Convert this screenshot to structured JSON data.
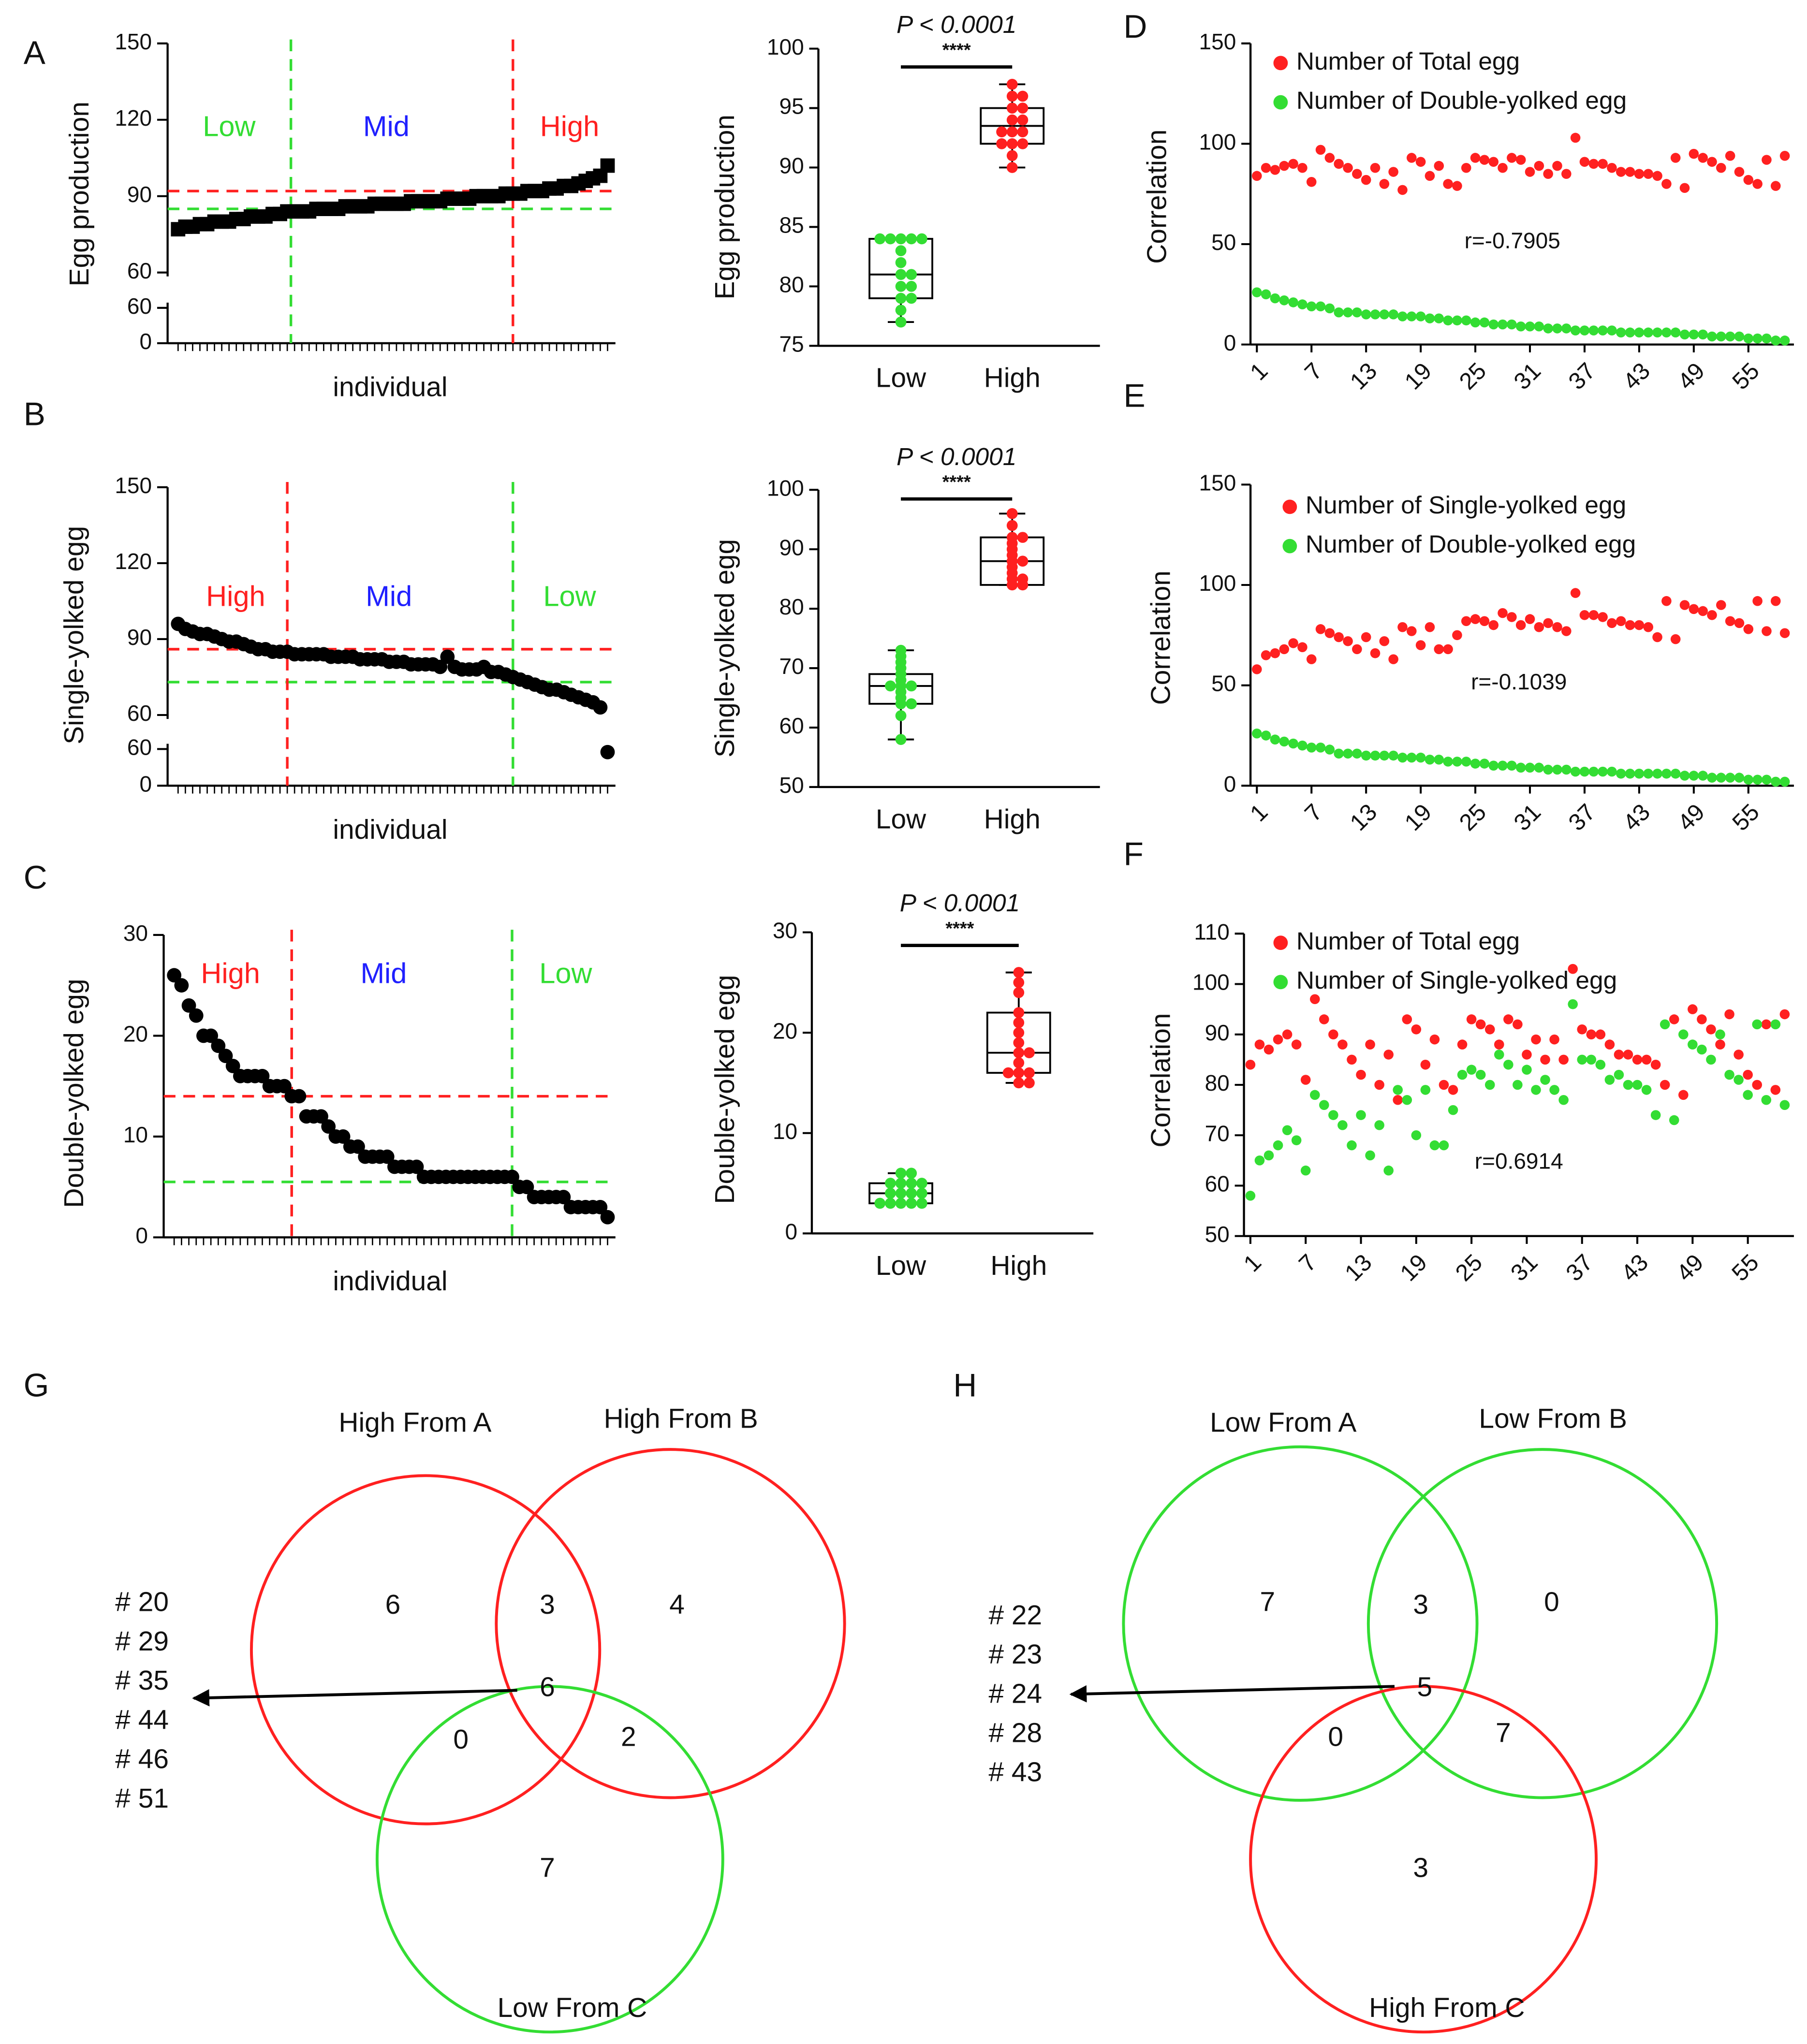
{
  "chart_data": [
    {
      "type": "scatter",
      "panel": "A",
      "ylabel": "Egg production",
      "xlabel": "individual",
      "marker": "square",
      "color": "#000000",
      "ylim": [
        60,
        150
      ],
      "yticks": [
        60,
        90,
        120,
        150
      ],
      "lower_ylim": [
        0,
        60
      ],
      "lower_yticks": [
        0,
        60
      ],
      "values": [
        77,
        78,
        78,
        79,
        79,
        80,
        80,
        80,
        81,
        81,
        82,
        82,
        82,
        83,
        83,
        84,
        84,
        84,
        84,
        85,
        85,
        85,
        85,
        86,
        86,
        86,
        86,
        87,
        87,
        87,
        87,
        87,
        88,
        88,
        88,
        88,
        88,
        89,
        89,
        89,
        89,
        90,
        90,
        90,
        90,
        91,
        91,
        91,
        92,
        92,
        92,
        93,
        93,
        94,
        94,
        95,
        96,
        97,
        98,
        102
      ],
      "hlines": [
        {
          "y": 92,
          "color": "#ff2020"
        },
        {
          "y": 85,
          "color": "#33dd33"
        }
      ],
      "vlines": [
        {
          "x": 15.5,
          "color": "#33dd33"
        },
        {
          "x": 46,
          "color": "#ff2020"
        }
      ],
      "regions": [
        {
          "label": "Low",
          "color": "#33dd33"
        },
        {
          "label": "Mid",
          "color": "#2020ff"
        },
        {
          "label": "High",
          "color": "#ff2020"
        }
      ]
    },
    {
      "type": "box",
      "ylabel": "Egg production",
      "ylim": [
        75,
        100
      ],
      "yticks": [
        75,
        80,
        85,
        90,
        95,
        100
      ],
      "p_label": "P < 0.0001",
      "stars": "****",
      "groups": [
        {
          "name": "Low",
          "color": "#33dd33",
          "values": [
            77,
            78,
            79,
            79,
            80,
            80,
            81,
            81,
            82,
            83,
            84,
            84,
            84,
            84,
            84
          ],
          "box": {
            "min": 77,
            "q1": 79,
            "median": 81,
            "q3": 84,
            "max": 84
          }
        },
        {
          "name": "High",
          "color": "#ff2020",
          "values": [
            90,
            91,
            92,
            92,
            92,
            93,
            93,
            93,
            94,
            94,
            95,
            95,
            96,
            96,
            97
          ],
          "box": {
            "min": 90,
            "q1": 92,
            "median": 93.5,
            "q3": 95,
            "max": 97
          }
        }
      ]
    },
    {
      "type": "scatter",
      "panel": "D",
      "ylabel": "Correlation",
      "annotation": "r=-0.7905",
      "xlim": [
        0.3,
        60
      ],
      "xticks": [
        1,
        7,
        13,
        19,
        25,
        31,
        37,
        43,
        49,
        55
      ],
      "ylim": [
        0,
        150
      ],
      "yticks": [
        0,
        50,
        100,
        150
      ],
      "x": [
        1,
        2,
        3,
        4,
        5,
        6,
        7,
        8,
        9,
        10,
        11,
        12,
        13,
        14,
        15,
        16,
        17,
        18,
        19,
        20,
        21,
        22,
        23,
        24,
        25,
        26,
        27,
        28,
        29,
        30,
        31,
        32,
        33,
        34,
        35,
        36,
        37,
        38,
        39,
        40,
        41,
        42,
        43,
        44,
        45,
        46,
        47,
        48,
        49,
        50,
        51,
        52,
        53,
        54,
        55,
        56,
        57,
        58,
        59
      ],
      "series": [
        {
          "name": "Number of Total egg",
          "color": "#ff2020",
          "values": [
            84,
            88,
            87,
            89,
            90,
            88,
            81,
            97,
            93,
            90,
            88,
            85,
            82,
            88,
            80,
            86,
            77,
            93,
            91,
            84,
            89,
            80,
            79,
            88,
            93,
            92,
            91,
            88,
            93,
            92,
            86,
            89,
            85,
            89,
            85,
            103,
            91,
            90,
            90,
            88,
            86,
            86,
            85,
            85,
            84,
            80,
            93,
            78,
            95,
            93,
            91,
            88,
            94,
            86,
            82,
            80,
            92,
            79,
            94
          ]
        },
        {
          "name": "Number of Double-yolked egg",
          "color": "#33dd33",
          "values": [
            26,
            25,
            23,
            22,
            21,
            20,
            19,
            19,
            18,
            16,
            16,
            16,
            15,
            15,
            15,
            15,
            14,
            14,
            14,
            13,
            13,
            12,
            12,
            12,
            11,
            11,
            10,
            10,
            10,
            9,
            9,
            9,
            8,
            8,
            8,
            7,
            7,
            7,
            7,
            7,
            6,
            6,
            6,
            6,
            6,
            6,
            6,
            5,
            5,
            5,
            4,
            4,
            4,
            4,
            3,
            3,
            3,
            2,
            2
          ]
        }
      ]
    },
    {
      "type": "scatter",
      "panel": "B",
      "ylabel": "Single-yolked egg",
      "xlabel": "individual",
      "marker": "circle",
      "color": "#000000",
      "ylim": [
        60,
        150
      ],
      "yticks": [
        60,
        90,
        120,
        150
      ],
      "lower_ylim": [
        0,
        60
      ],
      "lower_yticks": [
        0,
        60
      ],
      "values": [
        96,
        94,
        93,
        92,
        92,
        91,
        90,
        89,
        89,
        88,
        87,
        86,
        86,
        85,
        85,
        85,
        84,
        84,
        84,
        84,
        84,
        83,
        83,
        83,
        83,
        82,
        82,
        82,
        82,
        81,
        81,
        81,
        80,
        80,
        80,
        80,
        79,
        83,
        79,
        78,
        78,
        78,
        79,
        77,
        77,
        76,
        75,
        74,
        73,
        72,
        71,
        70,
        70,
        69,
        68,
        67,
        66,
        65,
        63,
        55
      ],
      "hlines": [
        {
          "y": 86,
          "color": "#ff2020"
        },
        {
          "y": 73,
          "color": "#33dd33"
        }
      ],
      "vlines": [
        {
          "x": 15,
          "color": "#ff2020"
        },
        {
          "x": 46,
          "color": "#33dd33"
        }
      ],
      "regions": [
        {
          "label": "High",
          "color": "#ff2020"
        },
        {
          "label": "Mid",
          "color": "#2020ff"
        },
        {
          "label": "Low",
          "color": "#33dd33"
        }
      ]
    },
    {
      "type": "box",
      "ylabel": "Single-yolked egg",
      "ylim": [
        50,
        100
      ],
      "yticks": [
        50,
        60,
        70,
        80,
        90,
        100
      ],
      "p_label": "P < 0.0001",
      "stars": "****",
      "groups": [
        {
          "name": "Low",
          "color": "#33dd33",
          "values": [
            58,
            62,
            64,
            64,
            65,
            66,
            67,
            67,
            67,
            68,
            69,
            70,
            71,
            72,
            73
          ],
          "box": {
            "min": 58,
            "q1": 64,
            "median": 67,
            "q3": 69,
            "max": 73
          }
        },
        {
          "name": "High",
          "color": "#ff2020",
          "values": [
            84,
            84,
            85,
            85,
            86,
            87,
            88,
            88,
            89,
            90,
            91,
            92,
            92,
            94,
            96
          ],
          "box": {
            "min": 84,
            "q1": 84,
            "median": 88,
            "q3": 92,
            "max": 96
          }
        }
      ]
    },
    {
      "type": "scatter",
      "panel": "E",
      "ylabel": "Correlation",
      "annotation": "r=-0.1039",
      "xlim": [
        0.3,
        60
      ],
      "xticks": [
        1,
        7,
        13,
        19,
        25,
        31,
        37,
        43,
        49,
        55
      ],
      "ylim": [
        0,
        150
      ],
      "yticks": [
        0,
        50,
        100,
        150
      ],
      "x": [
        1,
        2,
        3,
        4,
        5,
        6,
        7,
        8,
        9,
        10,
        11,
        12,
        13,
        14,
        15,
        16,
        17,
        18,
        19,
        20,
        21,
        22,
        23,
        24,
        25,
        26,
        27,
        28,
        29,
        30,
        31,
        32,
        33,
        34,
        35,
        36,
        37,
        38,
        39,
        40,
        41,
        42,
        43,
        44,
        45,
        46,
        47,
        48,
        49,
        50,
        51,
        52,
        53,
        54,
        55,
        56,
        57,
        58,
        59
      ],
      "series": [
        {
          "name": "Number of Single-yolked egg",
          "color": "#ff2020",
          "values": [
            58,
            65,
            66,
            68,
            71,
            69,
            63,
            78,
            76,
            74,
            72,
            68,
            74,
            66,
            72,
            63,
            79,
            77,
            70,
            79,
            68,
            68,
            75,
            82,
            83,
            82,
            80,
            86,
            84,
            80,
            83,
            79,
            81,
            79,
            77,
            96,
            85,
            85,
            84,
            81,
            82,
            80,
            80,
            79,
            74,
            92,
            73,
            90,
            88,
            87,
            85,
            90,
            82,
            81,
            78,
            92,
            77,
            92,
            76
          ]
        },
        {
          "name": "Number of Double-yolked egg",
          "color": "#33dd33",
          "values": [
            26,
            25,
            23,
            22,
            21,
            20,
            19,
            19,
            18,
            16,
            16,
            16,
            15,
            15,
            15,
            15,
            14,
            14,
            14,
            13,
            13,
            12,
            12,
            12,
            11,
            11,
            10,
            10,
            10,
            9,
            9,
            9,
            8,
            8,
            8,
            7,
            7,
            7,
            7,
            7,
            6,
            6,
            6,
            6,
            6,
            6,
            6,
            5,
            5,
            5,
            4,
            4,
            4,
            4,
            3,
            3,
            3,
            2,
            2
          ]
        }
      ]
    },
    {
      "type": "scatter",
      "panel": "C",
      "ylabel": "Double-yolked egg",
      "xlabel": "individual",
      "marker": "circle",
      "color": "#000000",
      "ylim": [
        0,
        30
      ],
      "yticks": [
        0,
        10,
        20,
        30
      ],
      "values": [
        26,
        25,
        23,
        22,
        20,
        20,
        19,
        18,
        17,
        16,
        16,
        16,
        16,
        15,
        15,
        15,
        14,
        14,
        12,
        12,
        12,
        11,
        10,
        10,
        9,
        9,
        8,
        8,
        8,
        8,
        7,
        7,
        7,
        7,
        6,
        6,
        6,
        6,
        6,
        6,
        6,
        6,
        6,
        6,
        6,
        6,
        6,
        5,
        5,
        4,
        4,
        4,
        4,
        4,
        3,
        3,
        3,
        3,
        3,
        2
      ],
      "hlines": [
        {
          "y": 14,
          "color": "#ff2020"
        },
        {
          "y": 5.5,
          "color": "#33dd33"
        }
      ],
      "vlines": [
        {
          "x": 16,
          "color": "#ff2020"
        },
        {
          "x": 46,
          "color": "#33dd33"
        }
      ],
      "regions": [
        {
          "label": "High",
          "color": "#ff2020"
        },
        {
          "label": "Mid",
          "color": "#2020ff"
        },
        {
          "label": "Low",
          "color": "#33dd33"
        }
      ]
    },
    {
      "type": "box",
      "ylabel": "Double-yolked egg",
      "ylim": [
        0,
        30
      ],
      "yticks": [
        0,
        10,
        20,
        30
      ],
      "p_label": "P < 0.0001",
      "stars": "****",
      "groups": [
        {
          "name": "Low",
          "color": "#33dd33",
          "values": [
            3,
            3,
            3,
            3,
            3,
            4,
            4,
            4,
            4,
            5,
            5,
            5,
            5,
            6,
            6
          ],
          "box": {
            "min": 3,
            "q1": 3,
            "median": 4,
            "q3": 5,
            "max": 6
          }
        },
        {
          "name": "High",
          "color": "#ff2020",
          "values": [
            15,
            15,
            16,
            16,
            16,
            17,
            18,
            18,
            19,
            20,
            21,
            22,
            24,
            25,
            26
          ],
          "box": {
            "min": 15,
            "q1": 16,
            "median": 18,
            "q3": 22,
            "max": 26
          }
        }
      ]
    },
    {
      "type": "scatter",
      "panel": "F",
      "ylabel": "Correlation",
      "annotation": "r=0.6914",
      "xlim": [
        0.3,
        60
      ],
      "xticks": [
        1,
        7,
        13,
        19,
        25,
        31,
        37,
        43,
        49,
        55
      ],
      "ylim": [
        50,
        110
      ],
      "yticks": [
        50,
        60,
        70,
        80,
        90,
        100,
        110
      ],
      "x": [
        1,
        2,
        3,
        4,
        5,
        6,
        7,
        8,
        9,
        10,
        11,
        12,
        13,
        14,
        15,
        16,
        17,
        18,
        19,
        20,
        21,
        22,
        23,
        24,
        25,
        26,
        27,
        28,
        29,
        30,
        31,
        32,
        33,
        34,
        35,
        36,
        37,
        38,
        39,
        40,
        41,
        42,
        43,
        44,
        45,
        46,
        47,
        48,
        49,
        50,
        51,
        52,
        53,
        54,
        55,
        56,
        57,
        58,
        59
      ],
      "series": [
        {
          "name": "Number of Total egg",
          "color": "#ff2020",
          "values": [
            84,
            88,
            87,
            89,
            90,
            88,
            81,
            97,
            93,
            90,
            88,
            85,
            82,
            88,
            80,
            86,
            77,
            93,
            91,
            84,
            89,
            80,
            79,
            88,
            93,
            92,
            91,
            88,
            93,
            92,
            86,
            89,
            85,
            89,
            85,
            103,
            91,
            90,
            90,
            88,
            86,
            86,
            85,
            85,
            84,
            80,
            93,
            78,
            95,
            93,
            91,
            88,
            94,
            86,
            82,
            80,
            92,
            79,
            94
          ]
        },
        {
          "name": "Number of Single-yolked egg",
          "color": "#33dd33",
          "values": [
            58,
            65,
            66,
            68,
            71,
            69,
            63,
            78,
            76,
            74,
            72,
            68,
            74,
            66,
            72,
            63,
            79,
            77,
            70,
            79,
            68,
            68,
            75,
            82,
            83,
            82,
            80,
            86,
            84,
            80,
            83,
            79,
            81,
            79,
            77,
            96,
            85,
            85,
            84,
            81,
            82,
            80,
            80,
            79,
            74,
            92,
            73,
            90,
            88,
            87,
            85,
            90,
            82,
            81,
            78,
            92,
            77,
            92,
            76
          ]
        }
      ]
    },
    {
      "type": "venn",
      "panel": "G",
      "sets": [
        {
          "name": "High From A",
          "color": "#ff2020"
        },
        {
          "name": "High From B",
          "color": "#ff2020"
        },
        {
          "name": "Low From C",
          "color": "#33dd33"
        }
      ],
      "regions": [
        6,
        3,
        4,
        6,
        0,
        2,
        7
      ],
      "members": [
        "# 20",
        "# 29",
        "# 35",
        "# 44",
        "# 46",
        "# 51"
      ]
    },
    {
      "type": "venn",
      "panel": "H",
      "sets": [
        {
          "name": "Low From A",
          "color": "#33dd33"
        },
        {
          "name": "Low From B",
          "color": "#33dd33"
        },
        {
          "name": "High From C",
          "color": "#ff2020"
        }
      ],
      "regions": [
        7,
        3,
        0,
        5,
        0,
        7,
        3
      ],
      "members": [
        "# 22",
        "# 23",
        "# 24",
        "# 28",
        "# 43"
      ]
    }
  ]
}
